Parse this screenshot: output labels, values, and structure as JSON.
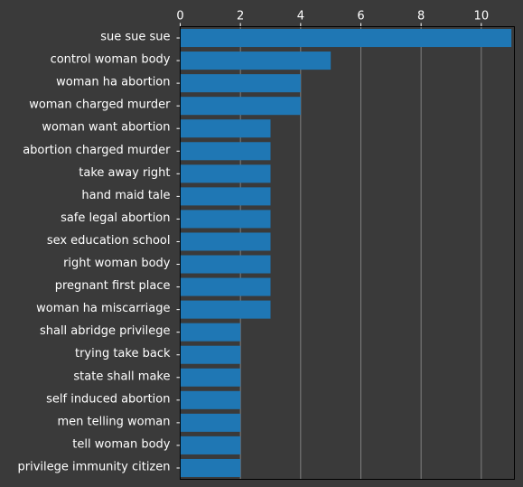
{
  "chart_data": {
    "type": "bar",
    "orientation": "horizontal",
    "categories": [
      "sue sue sue",
      "control woman body",
      "woman ha abortion",
      "woman charged murder",
      "woman want abortion",
      "abortion charged murder",
      "take away right",
      "hand maid tale",
      "safe legal abortion",
      "sex education school",
      "right woman body",
      "pregnant first place",
      "woman ha miscarriage",
      "shall abridge privilege",
      "trying take back",
      "state shall make",
      "self induced abortion",
      "men telling woman",
      "tell woman body",
      "privilege immunity citizen"
    ],
    "values": [
      11,
      5,
      4,
      4,
      3,
      3,
      3,
      3,
      3,
      3,
      3,
      3,
      3,
      2,
      2,
      2,
      2,
      2,
      2,
      2
    ],
    "xlim": [
      0,
      11.1
    ],
    "xticks": [
      0,
      2,
      4,
      6,
      8,
      10
    ],
    "xaxis_position": "top",
    "grid": "vertical",
    "bar_color": "#1f77b4",
    "grid_color": "#808080",
    "background_color": "#3a3a3a",
    "text_color": "#ffffff",
    "title": "",
    "xlabel": "",
    "ylabel": ""
  }
}
